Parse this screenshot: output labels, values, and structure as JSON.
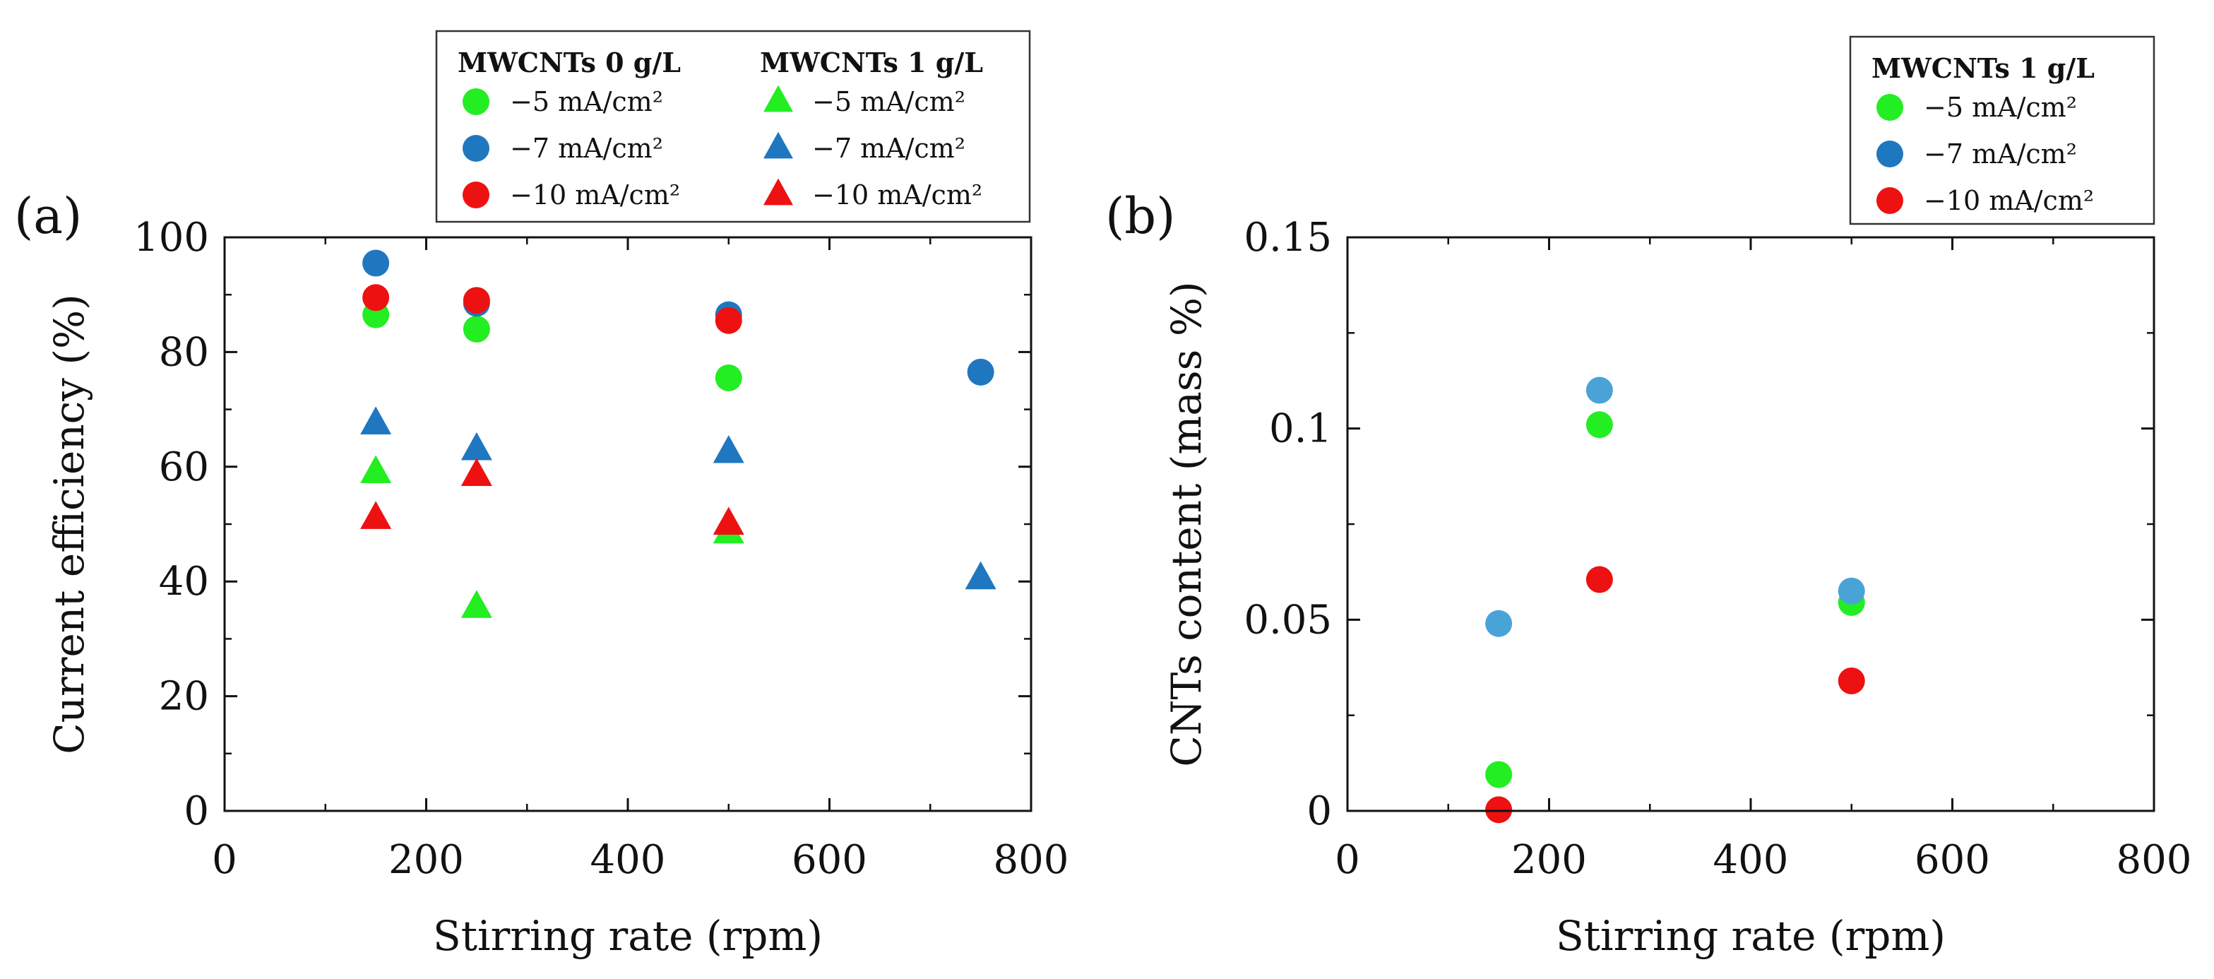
{
  "chart_data": [
    {
      "type": "scatter",
      "panel_label": "(a)",
      "xlabel": "Stirring rate (rpm)",
      "ylabel": "Current efficiency (%)",
      "xlim": [
        0,
        800
      ],
      "ylim": [
        0,
        100
      ],
      "xticks": [
        0,
        200,
        400,
        600,
        800
      ],
      "yticks": [
        0,
        20,
        40,
        60,
        80,
        100
      ],
      "legend": {
        "placement": "top, above plot",
        "groups": [
          {
            "title": "MWCNTs 0 g/L",
            "marker": "circle"
          },
          {
            "title": "MWCNTs 1 g/L",
            "marker": "triangle"
          }
        ]
      },
      "series": [
        {
          "name": "−5 mA/cm²",
          "group": "MWCNTs 0 g/L",
          "marker": "circle",
          "color": "#22ee22",
          "x": [
            150,
            250,
            500
          ],
          "y": [
            86.5,
            84,
            75.5
          ]
        },
        {
          "name": "−7 mA/cm²",
          "group": "MWCNTs 0 g/L",
          "marker": "circle",
          "color": "#1f77c0",
          "x": [
            150,
            250,
            500,
            750
          ],
          "y": [
            95.5,
            88.5,
            86.5,
            76.5
          ]
        },
        {
          "name": "−10 mA/cm²",
          "group": "MWCNTs 0 g/L",
          "marker": "circle",
          "color": "#ee1111",
          "x": [
            150,
            250,
            500
          ],
          "y": [
            89.5,
            89,
            85.5
          ]
        },
        {
          "name": "−5 mA/cm²",
          "group": "MWCNTs 1 g/L",
          "marker": "triangle",
          "color": "#22ee22",
          "x": [
            150,
            250,
            500
          ],
          "y": [
            59,
            35.5,
            48.5
          ]
        },
        {
          "name": "−7 mA/cm²",
          "group": "MWCNTs 1 g/L",
          "marker": "triangle",
          "color": "#1f77c0",
          "x": [
            150,
            250,
            500,
            750
          ],
          "y": [
            67.5,
            63,
            62.5,
            40.5
          ]
        },
        {
          "name": "−10 mA/cm²",
          "group": "MWCNTs 1 g/L",
          "marker": "triangle",
          "color": "#ee1111",
          "x": [
            150,
            250,
            500
          ],
          "y": [
            51,
            58.5,
            50
          ]
        }
      ]
    },
    {
      "type": "scatter",
      "panel_label": "(b)",
      "xlabel": "Stirring rate (rpm)",
      "ylabel": "CNTs content (mass %)",
      "xlim": [
        0,
        800
      ],
      "ylim": [
        0,
        0.15
      ],
      "xticks": [
        0,
        200,
        400,
        600,
        800
      ],
      "yticks": [
        0,
        0.05,
        0.1,
        0.15
      ],
      "ytick_labels": [
        "0",
        "0.05",
        "0.1",
        "0.15"
      ],
      "legend": {
        "placement": "top-right, above plot",
        "groups": [
          {
            "title": "MWCNTs 1 g/L",
            "marker": "circle"
          }
        ]
      },
      "series": [
        {
          "name": "−5 mA/cm²",
          "group": "MWCNTs 1 g/L",
          "marker": "circle",
          "color": "#22ee22",
          "x": [
            150,
            250,
            500
          ],
          "y": [
            0.0095,
            0.101,
            0.0545
          ]
        },
        {
          "name": "−7 mA/cm²",
          "group": "MWCNTs 1 g/L",
          "marker": "circle",
          "color": "#1f77c0",
          "point_color": "#4aa3d6",
          "x": [
            150,
            250,
            500
          ],
          "y": [
            0.049,
            0.11,
            0.0575
          ]
        },
        {
          "name": "−10 mA/cm²",
          "group": "MWCNTs 1 g/L",
          "marker": "circle",
          "color": "#ee1111",
          "x": [
            150,
            250,
            500
          ],
          "y": [
            0.0003,
            0.0605,
            0.034
          ]
        }
      ]
    }
  ]
}
